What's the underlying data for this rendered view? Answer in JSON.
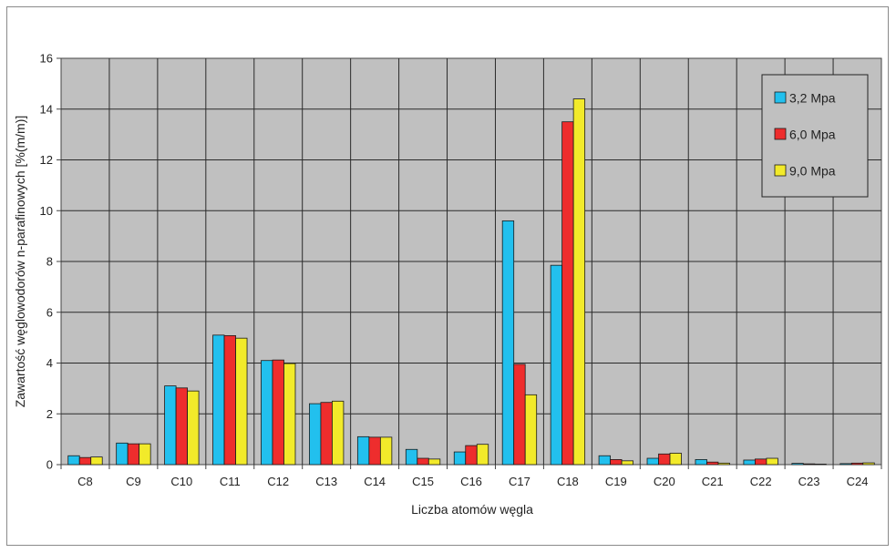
{
  "chart_data": {
    "type": "bar",
    "xlabel": "Liczba atomów węgla",
    "ylabel": "Zawartość węglowodorów n-parafinowych [%(m/m)]",
    "ylim": [
      0,
      16
    ],
    "yticks": [
      0,
      2,
      4,
      6,
      8,
      10,
      12,
      14,
      16
    ],
    "grid": true,
    "legend_position": "top-right",
    "categories": [
      "C8",
      "C9",
      "C10",
      "C11",
      "C12",
      "C13",
      "C14",
      "C15",
      "C16",
      "C17",
      "C18",
      "C19",
      "C20",
      "C21",
      "C22",
      "C23",
      "C24"
    ],
    "series": [
      {
        "name": "3,2 Mpa",
        "color": "#22c0ee",
        "values": [
          0.35,
          0.85,
          3.1,
          5.1,
          4.1,
          2.4,
          1.1,
          0.6,
          0.5,
          9.6,
          7.85,
          0.35,
          0.25,
          0.2,
          0.18,
          0.05,
          0.04
        ]
      },
      {
        "name": "6,0 Mpa",
        "color": "#ee2d2d",
        "values": [
          0.28,
          0.82,
          3.02,
          5.08,
          4.12,
          2.45,
          1.08,
          0.25,
          0.75,
          3.95,
          13.5,
          0.2,
          0.42,
          0.1,
          0.22,
          0.03,
          0.06
        ]
      },
      {
        "name": "9,0 Mpa",
        "color": "#f2ea2a",
        "values": [
          0.3,
          0.82,
          2.9,
          4.98,
          3.98,
          2.5,
          1.08,
          0.22,
          0.8,
          2.75,
          14.4,
          0.15,
          0.45,
          0.06,
          0.25,
          0.02,
          0.07
        ]
      }
    ]
  }
}
